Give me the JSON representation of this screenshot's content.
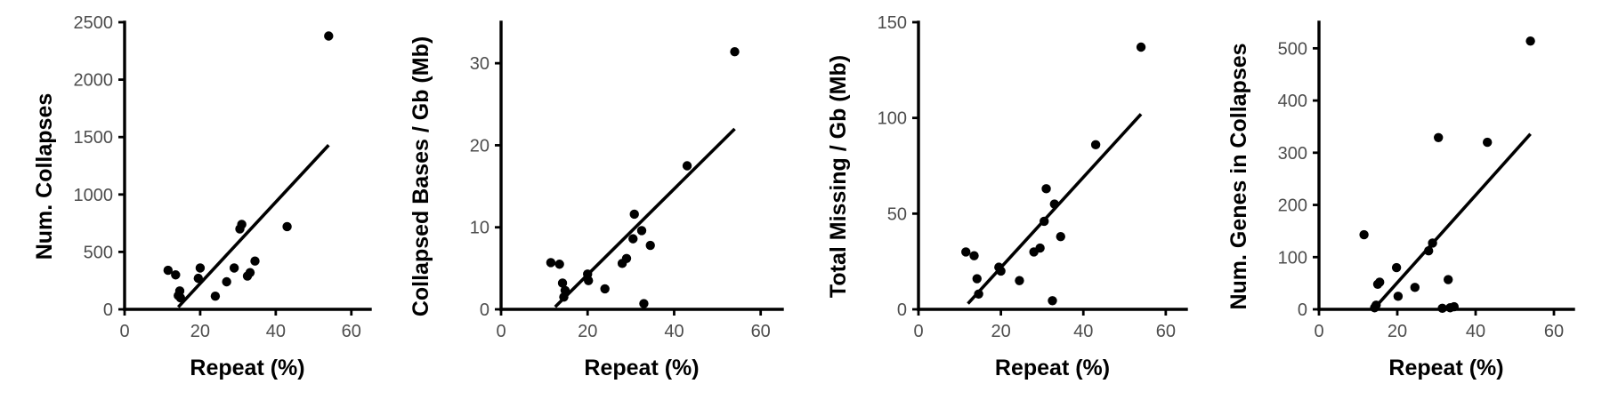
{
  "chart_data": [
    {
      "type": "scatter",
      "xlabel": "Repeat (%)",
      "ylabel": "Num. Collapses",
      "xlim": [
        0,
        65
      ],
      "ylim": [
        0,
        2500
      ],
      "xticks": [
        0,
        20,
        40,
        60
      ],
      "yticks": [
        0,
        500,
        1000,
        1500,
        2000,
        2500
      ],
      "x": [
        11.5,
        13.5,
        14.2,
        14.6,
        14.8,
        19.5,
        20,
        24,
        27,
        29,
        30.5,
        31,
        32.5,
        33.2,
        34.5,
        43,
        54
      ],
      "y": [
        340,
        300,
        120,
        160,
        100,
        270,
        360,
        115,
        240,
        360,
        700,
        740,
        290,
        320,
        420,
        720,
        2380
      ],
      "fit_line": {
        "x": [
          14.2,
          54
        ],
        "y": [
          20,
          1430
        ]
      }
    },
    {
      "type": "scatter",
      "xlabel": "Repeat (%)",
      "ylabel": "Collapsed Bases / Gb (Mb)",
      "xlim": [
        0,
        65
      ],
      "ylim": [
        0,
        35
      ],
      "xticks": [
        0,
        20,
        40,
        60
      ],
      "yticks": [
        0,
        10,
        20,
        30
      ],
      "x": [
        11.5,
        13.5,
        14.2,
        14.5,
        14.8,
        20,
        20.2,
        24,
        28,
        29,
        30.5,
        30.8,
        32.5,
        33,
        34.5,
        43,
        54
      ],
      "y": [
        5.7,
        5.5,
        3.2,
        1.5,
        2.3,
        4.3,
        3.5,
        2.5,
        5.6,
        6.2,
        8.6,
        11.6,
        9.6,
        0.7,
        7.8,
        17.5,
        31.4
      ],
      "fit_line": {
        "x": [
          12.5,
          54
        ],
        "y": [
          0.3,
          22
        ]
      }
    },
    {
      "type": "scatter",
      "xlabel": "Repeat (%)",
      "ylabel": "Total Missing / Gb (Mb)",
      "xlim": [
        0,
        65
      ],
      "ylim": [
        0,
        150
      ],
      "xticks": [
        0,
        20,
        40,
        60
      ],
      "yticks": [
        0,
        50,
        100,
        150
      ],
      "x": [
        11.5,
        13.5,
        14.2,
        14.6,
        19.5,
        20,
        24.5,
        28,
        29.5,
        30.5,
        31,
        32.5,
        33,
        34.5,
        43,
        54
      ],
      "y": [
        30,
        28,
        16,
        8,
        22,
        20,
        15,
        30,
        32,
        46,
        63,
        4.5,
        55,
        38,
        86,
        137
      ],
      "fit_line": {
        "x": [
          12,
          54
        ],
        "y": [
          3,
          102
        ]
      }
    },
    {
      "type": "scatter",
      "xlabel": "Repeat (%)",
      "ylabel": "Num. Genes in Collapses",
      "xlim": [
        0,
        65
      ],
      "ylim": [
        0,
        550
      ],
      "xticks": [
        0,
        20,
        40,
        60
      ],
      "yticks": [
        0,
        100,
        200,
        300,
        400,
        500
      ],
      "x": [
        11.5,
        14.2,
        14.6,
        15,
        15.5,
        19.8,
        20.2,
        24.5,
        28,
        29,
        30.5,
        31.5,
        33,
        33.5,
        34.5,
        43,
        54
      ],
      "y": [
        143,
        3,
        8,
        48,
        52,
        80,
        25,
        42,
        112,
        127,
        329,
        2,
        57,
        3,
        5,
        320,
        514
      ],
      "fit_line": {
        "x": [
          14.5,
          54
        ],
        "y": [
          5,
          336
        ]
      }
    }
  ]
}
